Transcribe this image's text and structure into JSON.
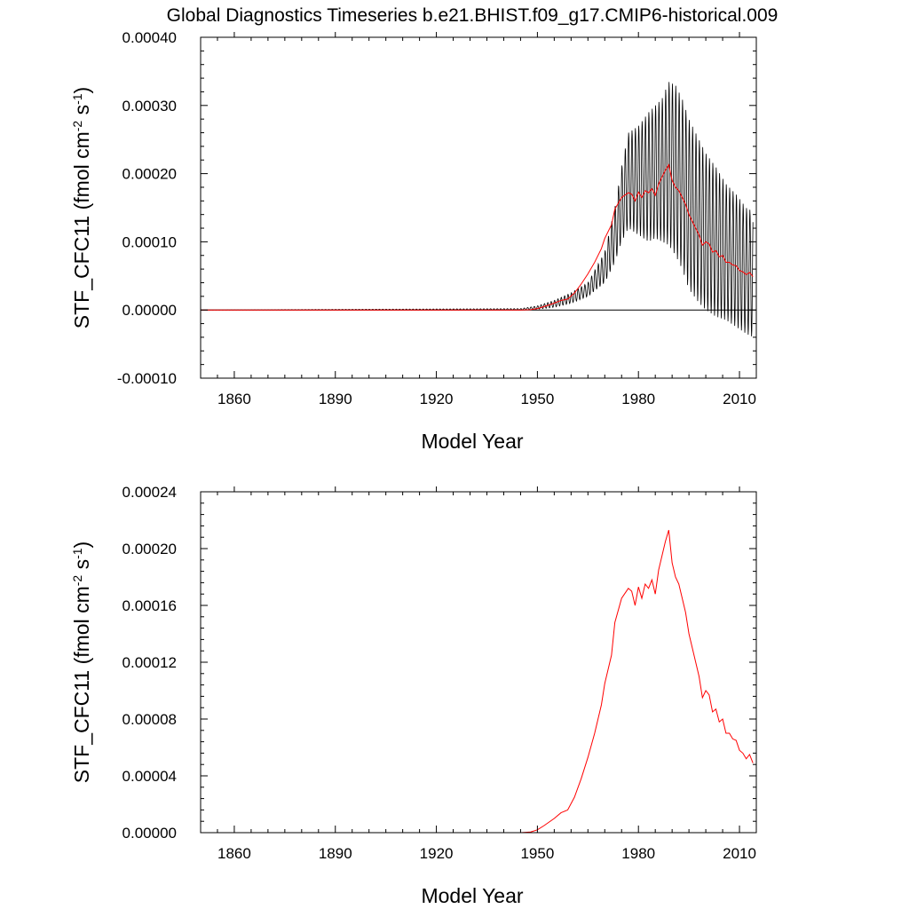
{
  "title": "Global Diagnostics Timeseries b.e21.BHIST.f09_g17.CMIP6-historical.009",
  "colors": {
    "monthly": "#000000",
    "annual": "#ff0000",
    "reference": "#000000"
  },
  "chart_data": [
    {
      "type": "line",
      "xlabel": "Model Year",
      "ylabel_main": "STF_CFC11  (fmol cm",
      "ylabel_sup1": "-2",
      "ylabel_mid": " s",
      "ylabel_sup2": "-1",
      "ylabel_end": ")",
      "xlim": [
        1850,
        2015
      ],
      "ylim": [
        -0.0001,
        0.0004
      ],
      "xticks": [
        1860,
        1890,
        1920,
        1950,
        1980,
        2010
      ],
      "xtick_labels": [
        "1860",
        "1890",
        "1920",
        "1950",
        "1980",
        "2010"
      ],
      "yticks": [
        -0.0001,
        0,
        0.0001,
        0.0002,
        0.0003,
        0.0004
      ],
      "ytick_labels": [
        "-0.00010",
        "0.00000",
        "0.00010",
        "0.00020",
        "0.00030",
        "0.00040"
      ],
      "reference_line": 0,
      "series": [
        {
          "kind": "monthly-envelope",
          "color": "#000000",
          "x": [
            1850,
            1945,
            1950,
            1955,
            1960,
            1965,
            1970,
            1973,
            1975,
            1977,
            1980,
            1983,
            1985,
            1987,
            1989,
            1991,
            1993,
            1995,
            1998,
            2000,
            2003,
            2006,
            2009,
            2012,
            2014
          ],
          "max": [
            0,
            2e-06,
            6e-06,
            1.4e-05,
            2.5e-05,
            4e-05,
            8.5e-05,
            0.00015,
            0.00021,
            0.00026,
            0.00027,
            0.00029,
            0.0003,
            0.00031,
            0.000335,
            0.00033,
            0.00031,
            0.00028,
            0.00025,
            0.00023,
            0.00021,
            0.000185,
            0.00017,
            0.00015,
            0.000145
          ],
          "min": [
            0,
            0,
            1e-06,
            4e-06,
            1e-05,
            2e-05,
            4e-05,
            7e-05,
            0.0001,
            0.00012,
            0.00011,
            0.0001,
            0.000105,
            0.0001,
            9.5e-05,
            8e-05,
            6e-05,
            3e-05,
            1e-05,
            0,
            -1e-05,
            -1.5e-05,
            -2.5e-05,
            -3.5e-05,
            -4e-05
          ]
        },
        {
          "kind": "annual",
          "color": "#ff0000",
          "x": [
            1850,
            1945,
            1948,
            1950,
            1952,
            1955,
            1957,
            1959,
            1961,
            1963,
            1965,
            1967,
            1969,
            1970,
            1972,
            1973,
            1975,
            1977,
            1978,
            1979,
            1980,
            1981,
            1982,
            1983,
            1984,
            1985,
            1986,
            1987,
            1988,
            1989,
            1990,
            1991,
            1992,
            1993,
            1994,
            1995,
            1997,
            1998,
            1999,
            2000,
            2001,
            2002,
            2003,
            2004,
            2005,
            2006,
            2007,
            2008,
            2009,
            2010,
            2011,
            2012,
            2013,
            2014
          ],
          "y": [
            0,
            0,
            5e-07,
            2e-06,
            5e-06,
            1e-05,
            1.4e-05,
            1.6e-05,
            2.5e-05,
            3.8e-05,
            5.3e-05,
            7e-05,
            9e-05,
            0.000105,
            0.000125,
            0.000148,
            0.000165,
            0.000172,
            0.00017,
            0.00016,
            0.000173,
            0.000165,
            0.000175,
            0.000172,
            0.000178,
            0.000168,
            0.000185,
            0.000195,
            0.000205,
            0.000213,
            0.00019,
            0.00018,
            0.000175,
            0.000165,
            0.000155,
            0.00014,
            0.00012,
            0.00011,
            9.5e-05,
            0.0001,
            9.7e-05,
            8.5e-05,
            8.7e-05,
            7.8e-05,
            8e-05,
            7e-05,
            7e-05,
            6.6e-05,
            6.5e-05,
            5.8e-05,
            5.6e-05,
            5.2e-05,
            5.5e-05,
            4.9e-05
          ]
        }
      ]
    },
    {
      "type": "line",
      "xlabel": "Model Year",
      "ylabel_main": "STF_CFC11  (fmol cm",
      "ylabel_sup1": "-2",
      "ylabel_mid": " s",
      "ylabel_sup2": "-1",
      "ylabel_end": ")",
      "xlim": [
        1850,
        2015
      ],
      "ylim": [
        0,
        0.00024
      ],
      "xticks": [
        1860,
        1890,
        1920,
        1950,
        1980,
        2010
      ],
      "xtick_labels": [
        "1860",
        "1890",
        "1920",
        "1950",
        "1980",
        "2010"
      ],
      "yticks": [
        0,
        4e-05,
        8e-05,
        0.00012,
        0.00016,
        0.0002,
        0.00024
      ],
      "ytick_labels": [
        "0.00000",
        "0.00004",
        "0.00008",
        "0.00012",
        "0.00016",
        "0.00020",
        "0.00024"
      ],
      "series": [
        {
          "kind": "annual",
          "color": "#ff0000",
          "x": [
            1850,
            1945,
            1948,
            1950,
            1952,
            1955,
            1957,
            1959,
            1961,
            1963,
            1965,
            1967,
            1969,
            1970,
            1972,
            1973,
            1975,
            1977,
            1978,
            1979,
            1980,
            1981,
            1982,
            1983,
            1984,
            1985,
            1986,
            1987,
            1988,
            1989,
            1990,
            1991,
            1992,
            1993,
            1994,
            1995,
            1997,
            1998,
            1999,
            2000,
            2001,
            2002,
            2003,
            2004,
            2005,
            2006,
            2007,
            2008,
            2009,
            2010,
            2011,
            2012,
            2013,
            2014
          ],
          "y": [
            0,
            0,
            5e-07,
            2e-06,
            5e-06,
            1e-05,
            1.4e-05,
            1.6e-05,
            2.5e-05,
            3.8e-05,
            5.3e-05,
            7e-05,
            9e-05,
            0.000105,
            0.000125,
            0.000148,
            0.000165,
            0.000172,
            0.00017,
            0.00016,
            0.000173,
            0.000165,
            0.000175,
            0.000172,
            0.000178,
            0.000168,
            0.000185,
            0.000195,
            0.000205,
            0.000213,
            0.00019,
            0.00018,
            0.000175,
            0.000165,
            0.000155,
            0.00014,
            0.00012,
            0.00011,
            9.5e-05,
            0.0001,
            9.7e-05,
            8.5e-05,
            8.7e-05,
            7.8e-05,
            8e-05,
            7e-05,
            7e-05,
            6.6e-05,
            6.5e-05,
            5.8e-05,
            5.6e-05,
            5.2e-05,
            5.5e-05,
            4.9e-05
          ]
        }
      ]
    }
  ]
}
